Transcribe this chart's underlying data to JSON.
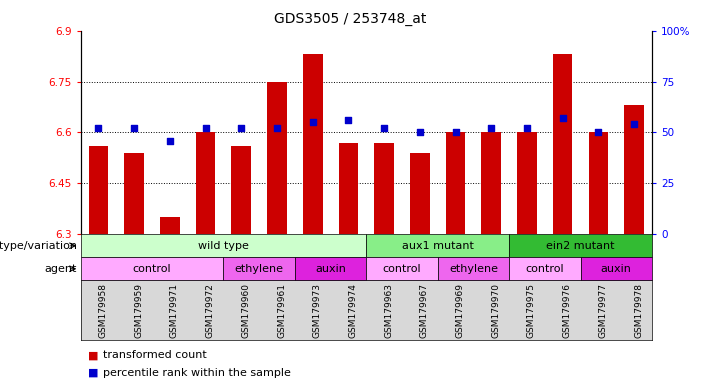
{
  "title": "GDS3505 / 253748_at",
  "samples": [
    "GSM179958",
    "GSM179959",
    "GSM179971",
    "GSM179972",
    "GSM179960",
    "GSM179961",
    "GSM179973",
    "GSM179974",
    "GSM179963",
    "GSM179967",
    "GSM179969",
    "GSM179970",
    "GSM179975",
    "GSM179976",
    "GSM179977",
    "GSM179978"
  ],
  "bar_values": [
    6.56,
    6.54,
    6.35,
    6.6,
    6.56,
    6.75,
    6.83,
    6.57,
    6.57,
    6.54,
    6.6,
    6.6,
    6.6,
    6.83,
    6.6,
    6.68
  ],
  "dot_values": [
    52,
    52,
    46,
    52,
    52,
    52,
    55,
    56,
    52,
    50,
    50,
    52,
    52,
    57,
    50,
    54
  ],
  "ylim_left": [
    6.3,
    6.9
  ],
  "ylim_right": [
    0,
    100
  ],
  "yticks_left": [
    6.3,
    6.45,
    6.6,
    6.75,
    6.9
  ],
  "yticks_right": [
    0,
    25,
    50,
    75,
    100
  ],
  "ytick_labels_left": [
    "6.3",
    "6.45",
    "6.6",
    "6.75",
    "6.9"
  ],
  "ytick_labels_right": [
    "0",
    "25",
    "50",
    "75",
    "100%"
  ],
  "bar_color": "#cc0000",
  "dot_color": "#0000cc",
  "bar_bottom": 6.3,
  "genotype_groups": [
    {
      "label": "wild type",
      "start": 0,
      "end": 8,
      "color": "#ccffcc"
    },
    {
      "label": "aux1 mutant",
      "start": 8,
      "end": 12,
      "color": "#88ee88"
    },
    {
      "label": "ein2 mutant",
      "start": 12,
      "end": 16,
      "color": "#33bb33"
    }
  ],
  "agent_groups": [
    {
      "label": "control",
      "start": 0,
      "end": 4,
      "color": "#ffaaff"
    },
    {
      "label": "ethylene",
      "start": 4,
      "end": 6,
      "color": "#ee66ee"
    },
    {
      "label": "auxin",
      "start": 6,
      "end": 8,
      "color": "#dd22dd"
    },
    {
      "label": "control",
      "start": 8,
      "end": 10,
      "color": "#ffaaff"
    },
    {
      "label": "ethylene",
      "start": 10,
      "end": 12,
      "color": "#ee66ee"
    },
    {
      "label": "control",
      "start": 12,
      "end": 14,
      "color": "#ffaaff"
    },
    {
      "label": "auxin",
      "start": 14,
      "end": 16,
      "color": "#dd22dd"
    }
  ],
  "legend_bar_label": "transformed count",
  "legend_dot_label": "percentile rank within the sample",
  "genotype_label": "genotype/variation",
  "agent_label": "agent",
  "title_fontsize": 10,
  "tick_fontsize": 7.5,
  "label_fontsize": 8,
  "xtick_fontsize": 6.5,
  "row_label_fontsize": 8,
  "legend_fontsize": 8
}
